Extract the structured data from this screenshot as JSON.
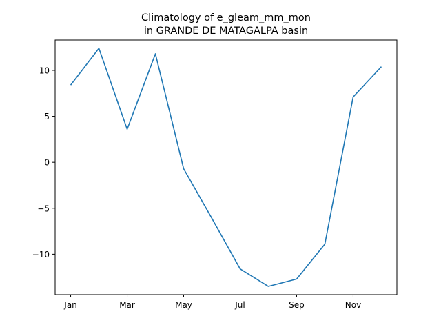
{
  "chart_data": {
    "type": "line",
    "title_lines": [
      "Climatology of e_gleam_mm_mon",
      "in GRANDE DE MATAGALPA basin"
    ],
    "xlabel": "",
    "ylabel": "",
    "x": [
      "Jan",
      "Feb",
      "Mar",
      "Apr",
      "May",
      "Jun",
      "Jul",
      "Aug",
      "Sep",
      "Oct",
      "Nov",
      "Dec"
    ],
    "x_tick_labels": [
      "Jan",
      "Mar",
      "May",
      "Jul",
      "Sep",
      "Nov"
    ],
    "series": [
      {
        "values": [
          8.4,
          12.4,
          3.6,
          11.8,
          -0.7,
          -6.1,
          -11.6,
          -13.5,
          -12.7,
          -8.9,
          7.1,
          10.4
        ],
        "color": "#1f77b4"
      }
    ],
    "y_ticks": [
      -10,
      -5,
      0,
      5,
      10
    ],
    "y_tick_labels": [
      "−10",
      "−5",
      "0",
      "5",
      "10"
    ],
    "ylim": [
      -14.4,
      13.3
    ],
    "grid": false,
    "legend": "none"
  }
}
